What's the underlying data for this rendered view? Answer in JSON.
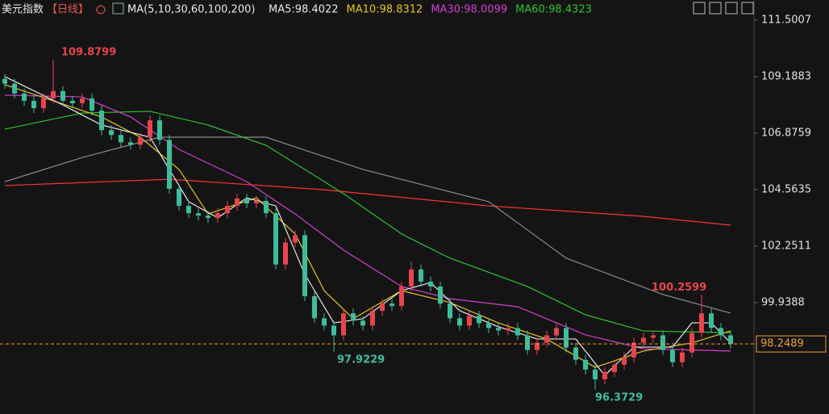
{
  "chart_data": {
    "type": "candlestick",
    "title": "美元指数",
    "period": "【日线】",
    "indicator": "MA(5,10,30,60,100,200)",
    "ylim": [
      95.38,
      112.3266
    ],
    "yticks": [
      111.5007,
      109.1883,
      106.8759,
      104.5635,
      102.2511,
      99.9388
    ],
    "current": 98.2489,
    "up_color": "#e8444c",
    "down_color": "#3dbd9c",
    "open": [
      109.1,
      108.9,
      108.5,
      108.2,
      107.9,
      108.3,
      108.6,
      108.2,
      108.1,
      108.3,
      107.8,
      107.0,
      106.8,
      106.5,
      106.4,
      106.7,
      107.4,
      106.6,
      104.6,
      103.9,
      103.6,
      103.5,
      103.4,
      103.6,
      103.9,
      104.2,
      104.0,
      104.1,
      103.6,
      101.5,
      102.4,
      102.7,
      100.2,
      99.3,
      99.0,
      98.6,
      99.5,
      99.2,
      99.0,
      99.6,
      99.9,
      99.8,
      100.6,
      101.3,
      100.8,
      100.6,
      99.9,
      99.3,
      99.0,
      99.4,
      99.1,
      98.9,
      98.8,
      98.9,
      98.6,
      98.0,
      98.3,
      98.6,
      98.9,
      98.1,
      97.6,
      97.2,
      96.8,
      97.1,
      97.4,
      97.7,
      98.3,
      98.5,
      98.6,
      98.0,
      97.5,
      97.9,
      98.7,
      99.5,
      98.9,
      98.6
    ],
    "high": [
      109.3,
      109.1,
      108.7,
      108.4,
      108.5,
      109.8799,
      108.8,
      108.4,
      108.5,
      108.5,
      108.0,
      107.2,
      107.0,
      106.7,
      106.9,
      107.6,
      107.6,
      106.8,
      104.8,
      104.1,
      103.8,
      103.7,
      103.8,
      104.1,
      104.4,
      104.4,
      104.3,
      104.3,
      103.8,
      102.6,
      102.9,
      102.9,
      100.4,
      99.5,
      99.2,
      99.7,
      99.7,
      99.4,
      99.8,
      100.1,
      100.1,
      100.8,
      101.6,
      101.5,
      101.0,
      100.8,
      100.1,
      99.5,
      99.6,
      99.6,
      99.3,
      99.1,
      99.1,
      99.1,
      98.8,
      98.5,
      98.8,
      99.1,
      99.1,
      98.3,
      97.8,
      97.4,
      97.3,
      97.6,
      97.9,
      98.5,
      98.7,
      98.8,
      98.8,
      98.2,
      98.1,
      98.9,
      100.2599,
      99.7,
      99.1,
      98.8
    ],
    "low": [
      108.7,
      108.3,
      108.0,
      107.7,
      107.7,
      108.1,
      108.0,
      107.9,
      107.9,
      107.6,
      106.8,
      106.6,
      106.3,
      106.2,
      106.2,
      106.5,
      106.4,
      104.4,
      103.7,
      103.4,
      103.3,
      103.2,
      103.2,
      103.4,
      103.7,
      103.8,
      103.8,
      103.4,
      101.3,
      101.3,
      102.2,
      100.0,
      99.1,
      98.8,
      97.9229,
      98.4,
      99.0,
      98.8,
      98.8,
      99.4,
      99.6,
      99.6,
      100.4,
      100.6,
      100.4,
      99.7,
      99.1,
      98.8,
      98.8,
      98.9,
      98.7,
      98.6,
      98.6,
      98.4,
      97.8,
      97.8,
      98.1,
      98.4,
      97.9,
      97.4,
      97.0,
      96.3729,
      96.6,
      96.9,
      97.2,
      97.5,
      98.1,
      98.3,
      97.8,
      97.3,
      97.3,
      97.7,
      98.5,
      98.7,
      98.4,
      98.05
    ],
    "close": [
      108.9,
      108.5,
      108.2,
      107.9,
      108.3,
      108.6,
      108.2,
      108.1,
      108.3,
      107.8,
      107.0,
      106.8,
      106.5,
      106.4,
      106.7,
      107.4,
      106.6,
      104.6,
      103.9,
      103.6,
      103.5,
      103.4,
      103.6,
      103.9,
      104.2,
      104.0,
      104.1,
      103.6,
      101.5,
      102.4,
      102.7,
      100.2,
      99.3,
      99.0,
      98.6,
      99.5,
      99.2,
      99.0,
      99.6,
      99.9,
      99.8,
      100.6,
      101.3,
      100.8,
      100.6,
      99.9,
      99.3,
      99.0,
      99.4,
      99.1,
      98.9,
      98.8,
      98.9,
      98.6,
      98.0,
      98.3,
      98.6,
      98.9,
      98.1,
      97.6,
      97.2,
      96.8,
      97.1,
      97.4,
      97.7,
      98.3,
      98.5,
      98.6,
      98.0,
      97.5,
      97.9,
      98.7,
      99.5,
      98.9,
      98.6,
      98.25
    ],
    "series": [
      {
        "color": "#ff3333",
        "x": [
          0,
          17,
          33,
          50,
          66,
          75
        ],
        "values": [
          104.73,
          104.99,
          104.56,
          103.9,
          103.47,
          103.11
        ]
      },
      {
        "color": "#8a8a8a",
        "x": [
          0,
          8,
          16,
          27,
          37,
          50,
          58,
          68,
          75
        ],
        "values": [
          104.89,
          105.88,
          106.71,
          106.71,
          105.39,
          104.07,
          101.76,
          100.27,
          99.51
        ]
      },
      {
        "name": "MA60:98.4323",
        "color": "#2fc52f",
        "x": [
          0,
          8,
          15,
          21,
          27,
          35,
          41,
          46,
          54,
          60,
          66,
          75
        ],
        "values": [
          107.04,
          107.7,
          107.77,
          107.21,
          106.38,
          104.4,
          102.75,
          101.76,
          100.6,
          99.44,
          98.78,
          98.71
        ]
      },
      {
        "name": "MA30:98.0099",
        "color": "#d43fd4",
        "x": [
          0,
          8,
          13,
          18,
          25,
          30,
          35,
          41,
          46,
          53,
          60,
          66,
          75
        ],
        "values": [
          108.43,
          108.36,
          107.54,
          106.21,
          104.89,
          103.57,
          102.09,
          100.6,
          100.1,
          99.77,
          98.62,
          98.05,
          97.96
        ]
      },
      {
        "name": "MA10:98.8312",
        "color": "#e6c619",
        "x": [
          0,
          5,
          10,
          14,
          18,
          21,
          26,
          30,
          33,
          36,
          41,
          46,
          51,
          56,
          61,
          66,
          71,
          75
        ],
        "values": [
          108.86,
          108.2,
          107.54,
          106.71,
          105.39,
          103.57,
          104.23,
          102.75,
          100.43,
          99.28,
          100.43,
          99.94,
          99.11,
          98.45,
          97.29,
          97.96,
          98.29,
          98.78
        ]
      },
      {
        "name": "MA5:98.4022",
        "color": "#e8e8e8",
        "x": [
          0,
          6,
          10,
          15,
          19,
          22,
          25,
          28,
          31,
          34,
          37,
          41,
          44,
          47,
          51,
          55,
          59,
          62,
          65,
          69,
          71,
          73,
          75
        ],
        "values": [
          109.19,
          108.03,
          107.21,
          106.71,
          104.07,
          103.41,
          104.23,
          103.9,
          101.1,
          99.11,
          99.28,
          100.43,
          100.76,
          99.61,
          98.95,
          98.45,
          98.45,
          96.96,
          98.12,
          98.12,
          99.11,
          99.11,
          98.29
        ]
      }
    ]
  }
}
